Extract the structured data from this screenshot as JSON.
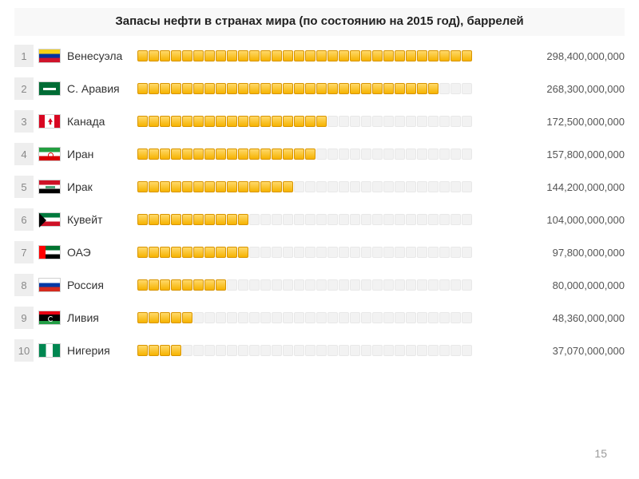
{
  "title": "Запасы нефти в странах мира (по состоянию на 2015 год), баррелей",
  "page_number": "15",
  "chart": {
    "type": "bar",
    "segment_count": 30,
    "max_value": 298400000000,
    "segment_filled_gradient": [
      "#ffd96a",
      "#f6b300"
    ],
    "segment_filled_border": "#d89400",
    "segment_empty_bg": "#f2f2f2",
    "segment_empty_border": "#e8e8e8",
    "rank_bg": "#eeeeee",
    "rank_color": "#888888",
    "value_color": "#555555",
    "country_color": "#333333",
    "title_fontsize": 15,
    "row_fontsize": 14,
    "value_fontsize": 13
  },
  "rows": [
    {
      "rank": "1",
      "country": "Венесуэла",
      "flag": "venezuela",
      "value": 298400000000,
      "value_label": "298,400,000,000"
    },
    {
      "rank": "2",
      "country": "С. Аравия",
      "flag": "saudi",
      "value": 268300000000,
      "value_label": "268,300,000,000"
    },
    {
      "rank": "3",
      "country": "Канада",
      "flag": "canada",
      "value": 172500000000,
      "value_label": "172,500,000,000"
    },
    {
      "rank": "4",
      "country": "Иран",
      "flag": "iran",
      "value": 157800000000,
      "value_label": "157,800,000,000"
    },
    {
      "rank": "5",
      "country": "Ирак",
      "flag": "iraq",
      "value": 144200000000,
      "value_label": "144,200,000,000"
    },
    {
      "rank": "6",
      "country": "Кувейт",
      "flag": "kuwait",
      "value": 104000000000,
      "value_label": "104,000,000,000"
    },
    {
      "rank": "7",
      "country": "ОАЭ",
      "flag": "uae",
      "value": 97800000000,
      "value_label": "97,800,000,000"
    },
    {
      "rank": "8",
      "country": "Россия",
      "flag": "russia",
      "value": 80000000000,
      "value_label": "80,000,000,000"
    },
    {
      "rank": "9",
      "country": "Ливия",
      "flag": "libya",
      "value": 48360000000,
      "value_label": "48,360,000,000"
    },
    {
      "rank": "10",
      "country": "Нигерия",
      "flag": "nigeria",
      "value": 37070000000,
      "value_label": "37,070,000,000"
    }
  ]
}
